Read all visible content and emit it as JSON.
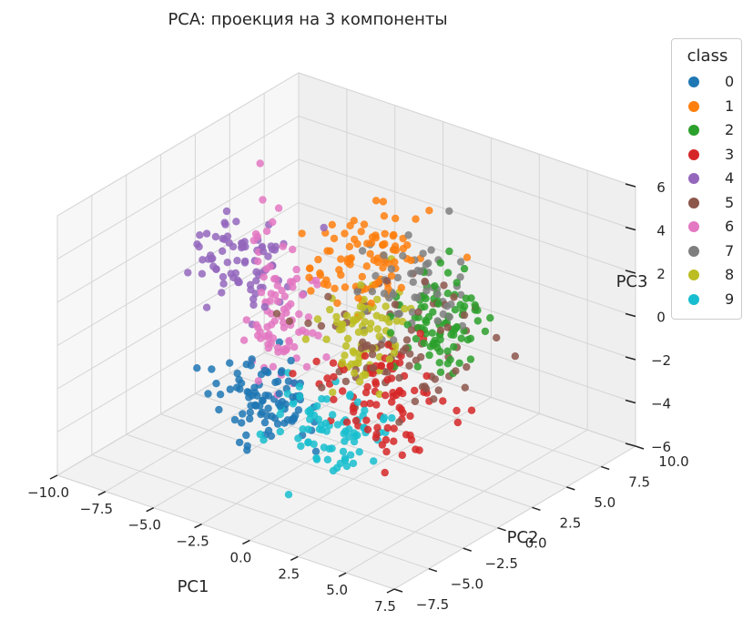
{
  "chart_data": {
    "type": "scatter",
    "projection": "3d",
    "title": "PCA: проекция на 3 компоненты",
    "xlabel": "PC1",
    "ylabel": "PC2",
    "zlabel": "PC3",
    "xlim": [
      -10,
      7.5
    ],
    "ylim": [
      -7.5,
      10
    ],
    "zlim": [
      -6,
      6
    ],
    "x_ticks": [
      "−10.0",
      "−7.5",
      "−5.0",
      "−2.5",
      "0.0",
      "2.5",
      "5.0",
      "7.5"
    ],
    "y_ticks": [
      "−7.5",
      "−5.0",
      "−2.5",
      "0.0",
      "2.5",
      "5.0",
      "7.5",
      "10.0"
    ],
    "z_ticks": [
      "−6",
      "−4",
      "−2",
      "0",
      "2",
      "4",
      "6"
    ],
    "grid": true,
    "legend": {
      "title": "class",
      "placement": "outside-right",
      "entries": [
        "0",
        "1",
        "2",
        "3",
        "4",
        "5",
        "6",
        "7",
        "8",
        "9"
      ]
    },
    "series": [
      {
        "name": "0",
        "color": "#1f77b4",
        "center": [
          -3.5,
          -1.5,
          -3.0
        ],
        "spread": [
          1.2,
          1.0,
          1.0
        ],
        "count": 90
      },
      {
        "name": "1",
        "color": "#ff7f0e",
        "center": [
          -1.0,
          2.5,
          3.0
        ],
        "spread": [
          1.2,
          1.2,
          1.0
        ],
        "count": 90
      },
      {
        "name": "2",
        "color": "#2ca02c",
        "center": [
          2.5,
          3.0,
          0.8
        ],
        "spread": [
          1.2,
          1.2,
          1.0
        ],
        "count": 90
      },
      {
        "name": "3",
        "color": "#d62728",
        "center": [
          2.0,
          -0.5,
          -1.5
        ],
        "spread": [
          1.5,
          1.4,
          1.2
        ],
        "count": 90
      },
      {
        "name": "4",
        "color": "#9467bd",
        "center": [
          -6.5,
          0.5,
          2.0
        ],
        "spread": [
          1.2,
          1.0,
          1.0
        ],
        "count": 80
      },
      {
        "name": "5",
        "color": "#8c564b",
        "center": [
          1.5,
          1.5,
          0.0
        ],
        "spread": [
          1.8,
          1.8,
          1.5
        ],
        "count": 80
      },
      {
        "name": "6",
        "color": "#e377c2",
        "center": [
          -4.0,
          0.0,
          0.5
        ],
        "spread": [
          0.8,
          0.8,
          1.8
        ],
        "count": 90
      },
      {
        "name": "7",
        "color": "#7f7f7f",
        "center": [
          1.0,
          3.0,
          2.0
        ],
        "spread": [
          1.2,
          1.2,
          1.0
        ],
        "count": 60
      },
      {
        "name": "8",
        "color": "#bcbd22",
        "center": [
          0.0,
          1.0,
          0.5
        ],
        "spread": [
          1.0,
          1.0,
          1.0
        ],
        "count": 80
      },
      {
        "name": "9",
        "color": "#17becf",
        "center": [
          0.5,
          -2.0,
          -3.0
        ],
        "spread": [
          1.2,
          1.0,
          1.0
        ],
        "count": 80
      }
    ]
  }
}
